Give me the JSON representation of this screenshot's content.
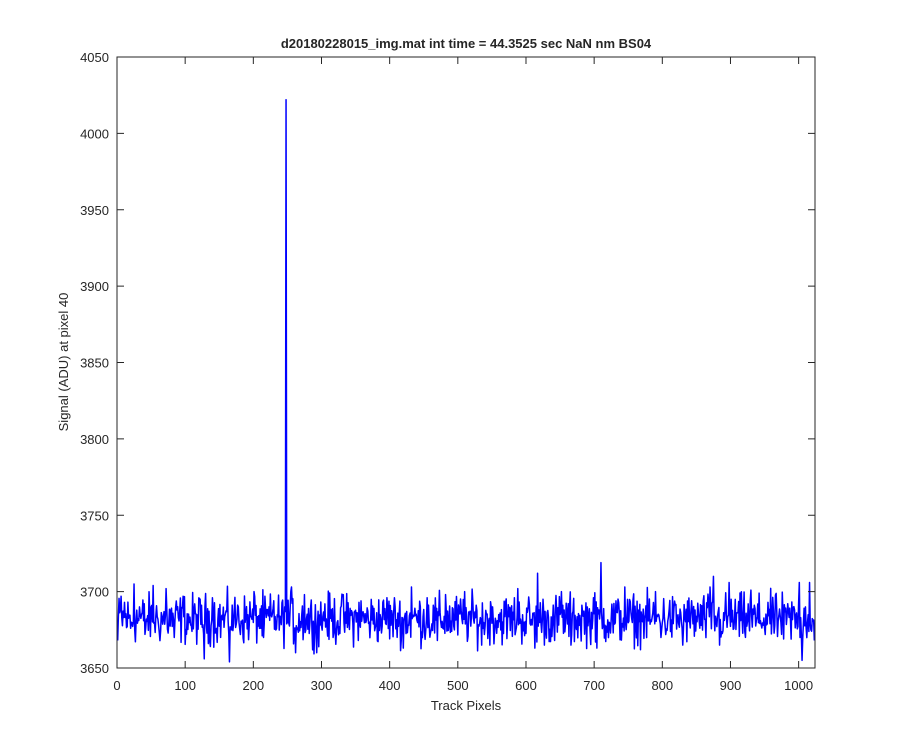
{
  "chart_data": {
    "type": "line",
    "title": "d20180228015_img.mat int time = 44.3525 sec  NaN nm BS04",
    "xlabel": "Track Pixels",
    "ylabel": "Signal (ADU) at pixel 40",
    "xlim": [
      0,
      1024
    ],
    "ylim": [
      3650,
      4050
    ],
    "xticks": [
      0,
      100,
      200,
      300,
      400,
      500,
      600,
      700,
      800,
      900,
      1000
    ],
    "yticks": [
      3650,
      3700,
      3750,
      3800,
      3850,
      3900,
      3950,
      4000,
      4050
    ],
    "grid": false,
    "series_color": "#0000ff",
    "series": [
      {
        "baseline": 3682,
        "noise_amplitude": 10,
        "points": [
          [
            1,
            3668
          ],
          [
            6,
            3697
          ],
          [
            11,
            3693
          ],
          [
            20,
            3676
          ],
          [
            25,
            3705
          ],
          [
            33,
            3690
          ],
          [
            41,
            3672
          ],
          [
            53,
            3704
          ],
          [
            61,
            3678
          ],
          [
            72,
            3702
          ],
          [
            84,
            3670
          ],
          [
            97,
            3697
          ],
          [
            110,
            3674
          ],
          [
            128,
            3656
          ],
          [
            140,
            3696
          ],
          [
            165,
            3654
          ],
          [
            178,
            3690
          ],
          [
            201,
            3700
          ],
          [
            215,
            3670
          ],
          [
            230,
            3694
          ],
          [
            240,
            3683
          ],
          [
            246,
            3690
          ],
          [
            248,
            4022
          ],
          [
            250,
            3680
          ],
          [
            256,
            3703
          ],
          [
            262,
            3660
          ],
          [
            275,
            3698
          ],
          [
            293,
            3660
          ],
          [
            305,
            3692
          ],
          [
            332,
            3698
          ],
          [
            355,
            3693
          ],
          [
            396,
            3696
          ],
          [
            420,
            3663
          ],
          [
            432,
            3703
          ],
          [
            455,
            3696
          ],
          [
            470,
            3668
          ],
          [
            482,
            3698
          ],
          [
            510,
            3700
          ],
          [
            535,
            3665
          ],
          [
            551,
            3690
          ],
          [
            588,
            3702
          ],
          [
            613,
            3663
          ],
          [
            617,
            3712
          ],
          [
            642,
            3668
          ],
          [
            652,
            3700
          ],
          [
            666,
            3665
          ],
          [
            699,
            3696
          ],
          [
            704,
            3663
          ],
          [
            710,
            3719
          ],
          [
            745,
            3703
          ],
          [
            790,
            3700
          ],
          [
            830,
            3665
          ],
          [
            870,
            3703
          ],
          [
            875,
            3710
          ],
          [
            884,
            3665
          ],
          [
            898,
            3706
          ],
          [
            930,
            3701
          ],
          [
            955,
            3693
          ],
          [
            978,
            3669
          ],
          [
            1001,
            3706
          ],
          [
            1005,
            3655
          ],
          [
            1010,
            3690
          ],
          [
            1016,
            3706
          ],
          [
            1023,
            3668
          ]
        ]
      }
    ]
  }
}
